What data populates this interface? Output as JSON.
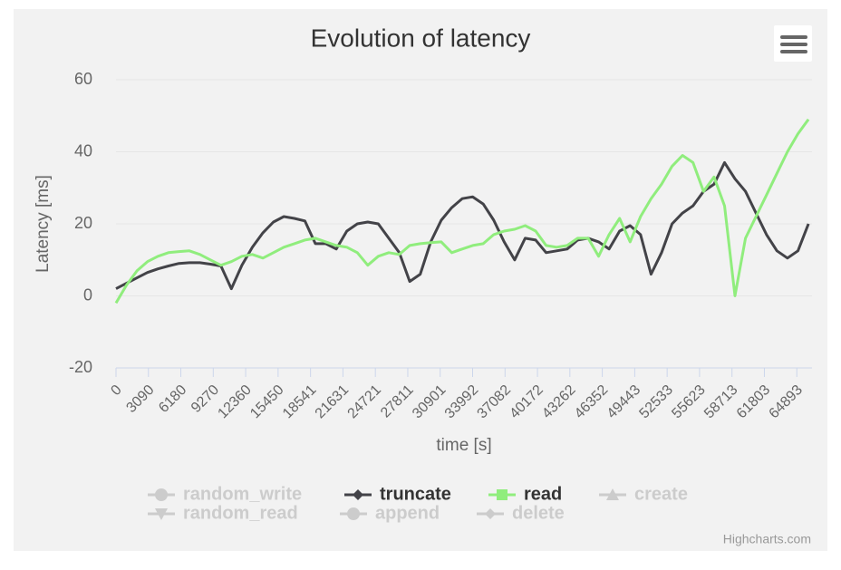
{
  "chart_data": {
    "type": "line",
    "title": "Evolution of latency",
    "x_label": "time [s]",
    "y_label": "Latency [ms]",
    "credits": "Highcharts.com",
    "x": [
      0,
      1000,
      2000,
      3000,
      4000,
      5000,
      6000,
      7000,
      8000,
      9000,
      10000,
      11000,
      12000,
      13000,
      14000,
      15000,
      16000,
      17000,
      18000,
      19000,
      20000,
      21000,
      22000,
      23000,
      24000,
      25000,
      26000,
      27000,
      28000,
      29000,
      30000,
      31000,
      32000,
      33000,
      34000,
      35000,
      36000,
      37000,
      38000,
      39000,
      40000,
      41000,
      42000,
      43000,
      44000,
      45000,
      46000,
      47000,
      48000,
      49000,
      50000,
      51000,
      52000,
      53000,
      54000,
      55000,
      56000,
      57000,
      58000,
      59000,
      60000,
      61000,
      62000,
      63000,
      64000,
      65000,
      66000
    ],
    "xlim": [
      0,
      66340
    ],
    "xticks": [
      0,
      3090,
      6180,
      9270,
      12360,
      15450,
      18541,
      21631,
      24721,
      27811,
      30901,
      33992,
      37082,
      40172,
      43262,
      46352,
      49443,
      52533,
      55623,
      58713,
      61803,
      64893
    ],
    "ylim": [
      -20,
      60
    ],
    "yticks": [
      -20,
      0,
      20,
      40,
      60
    ],
    "grid": true,
    "series": [
      {
        "name": "random_write",
        "color": "#7cb5ec",
        "symbol": "circle",
        "visible": false
      },
      {
        "name": "truncate",
        "color": "#434348",
        "symbol": "diamond",
        "visible": true,
        "values": [
          2,
          3.5,
          5,
          6.5,
          7.5,
          8.3,
          9,
          9.2,
          9.2,
          8.8,
          8.3,
          2,
          8.5,
          13.5,
          17.5,
          20.5,
          22,
          21.5,
          20.8,
          14.5,
          14.5,
          13,
          18,
          20,
          20.5,
          20,
          16,
          12,
          4,
          6,
          15,
          21,
          24.5,
          27,
          27.5,
          25.5,
          21,
          15,
          10,
          16,
          15.5,
          12,
          12.5,
          13,
          15.5,
          16,
          15,
          13,
          18,
          19.5,
          17,
          6,
          12,
          20,
          23,
          25,
          29,
          31,
          37,
          32.5,
          29,
          23,
          17,
          12.5,
          10.5,
          12.5,
          20
        ]
      },
      {
        "name": "read",
        "color": "#90ed7d",
        "symbol": "square",
        "visible": true,
        "values": [
          -2,
          3,
          7,
          9.5,
          11,
          12,
          12.3,
          12.5,
          11.5,
          10,
          8.5,
          9.5,
          11,
          11.5,
          10.5,
          12,
          13.5,
          14.5,
          15.5,
          16,
          15,
          14,
          13.5,
          12,
          8.5,
          11,
          12,
          11.5,
          14,
          14.5,
          14.8,
          15,
          12,
          13,
          14,
          14.5,
          17,
          18,
          18.5,
          19.5,
          18,
          14,
          13.5,
          14,
          16,
          16,
          11,
          17,
          21.5,
          15,
          22,
          27,
          31,
          36,
          39,
          37,
          29,
          33,
          25,
          0,
          16,
          22,
          28,
          34,
          40,
          45,
          49
        ]
      },
      {
        "name": "create",
        "color": "#f7a35c",
        "symbol": "triangle",
        "visible": false
      },
      {
        "name": "random_read",
        "color": "#8085e9",
        "symbol": "triangle-down",
        "visible": false
      },
      {
        "name": "append",
        "color": "#f15c80",
        "symbol": "circle",
        "visible": false
      },
      {
        "name": "delete",
        "color": "#e4d354",
        "symbol": "diamond",
        "visible": false
      }
    ]
  }
}
